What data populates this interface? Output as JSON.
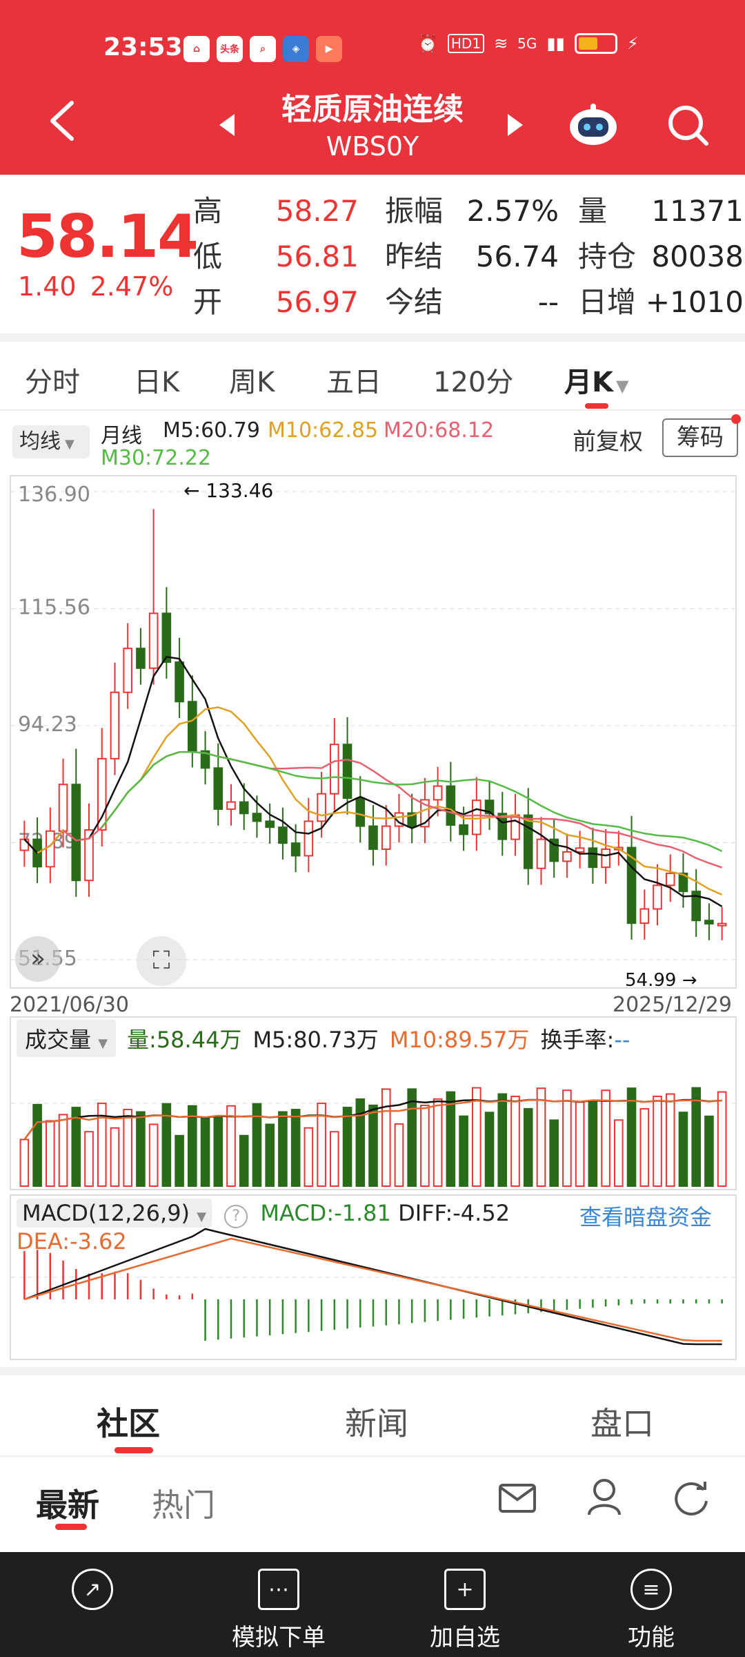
{
  "status": {
    "time": "23:53",
    "app_icons": [
      "头条"
    ],
    "net": "HD1",
    "signal": "5G"
  },
  "header": {
    "title": "轻质原油连续",
    "code": "WBS0Y"
  },
  "quote": {
    "price": "58.14",
    "change": "1.40",
    "change_pct": "2.47%",
    "rows": [
      {
        "l1": "高",
        "v1": "58.27",
        "l2": "振幅",
        "v2": "2.57%",
        "l3": "量",
        "v3": "11371"
      },
      {
        "l1": "低",
        "v1": "56.81",
        "l2": "昨结",
        "v2": "56.74",
        "l3": "持仓",
        "v3": "80038"
      },
      {
        "l1": "开",
        "v1": "56.97",
        "l2": "今结",
        "v2": "--",
        "l3": "日增",
        "v3": "+1010"
      }
    ]
  },
  "tabs": [
    "分时",
    "日K",
    "周K",
    "五日",
    "120分",
    "月K"
  ],
  "ma": {
    "selector": "均线",
    "period": "月线",
    "m5": "M5:60.79",
    "m10": "M10:62.85",
    "m20": "M20:68.12",
    "m30": "M30:72.22",
    "fuquan": "前复权",
    "chouma": "筹码"
  },
  "chart_data": {
    "type": "candlestick",
    "period": "monthly",
    "y_ticks": [
      "136.90",
      "115.56",
      "94.23",
      "72.89",
      "51.55"
    ],
    "max_label": "133.46",
    "min_label": "54.99",
    "x_start": "2021/06/30",
    "x_end": "2025/12/29",
    "colors": {
      "up": "#e33",
      "down": "#2a6b1a",
      "m5": "#111",
      "m10": "#e0a020",
      "m20": "#e86070",
      "m30": "#55bb44"
    }
  },
  "volume": {
    "selector": "成交量",
    "vol": "量:58.44万",
    "m5": "M5:80.73万",
    "m10": "M10:89.57万",
    "turnover": "换手率:",
    "turnover_val": "--"
  },
  "macd": {
    "label": "MACD(12,26,9)",
    "macd": "MACD:-1.81",
    "diff": "DIFF:-4.52",
    "dea": "DEA:-3.62",
    "link": "查看暗盘资金"
  },
  "community": {
    "tabs": [
      "社区",
      "新闻",
      "盘口"
    ],
    "sub": [
      "最新",
      "热门"
    ]
  },
  "bottom": {
    "items": [
      "",
      "模拟下单",
      "加自选",
      "功能"
    ]
  }
}
